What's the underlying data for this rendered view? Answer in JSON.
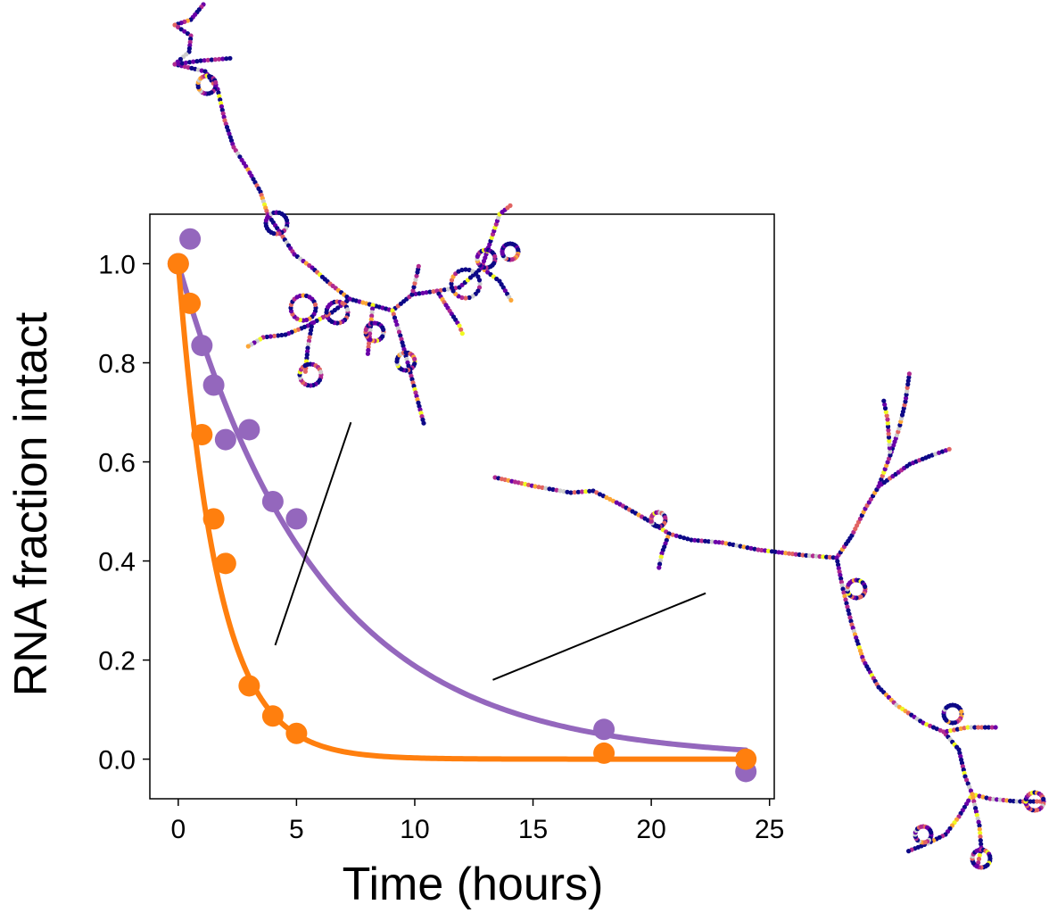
{
  "chart_data": {
    "type": "scatter",
    "xlabel": "Time (hours)",
    "ylabel": "RNA fraction intact",
    "xlim": [
      -1.2,
      25.2
    ],
    "ylim": [
      -0.08,
      1.1
    ],
    "xticks": [
      0,
      5,
      10,
      15,
      20,
      25
    ],
    "yticks": [
      0.0,
      0.2,
      0.4,
      0.6,
      0.8,
      1.0
    ],
    "xtick_labels": [
      "0",
      "5",
      "10",
      "15",
      "20",
      "25"
    ],
    "ytick_labels": [
      "0.0",
      "0.2",
      "0.4",
      "0.6",
      "0.8",
      "1.0"
    ],
    "grid": false,
    "legend": false,
    "series": [
      {
        "color": "#9467bd",
        "points": [
          {
            "x": 0,
            "y": 1.0
          },
          {
            "x": 0.5,
            "y": 1.05
          },
          {
            "x": 1,
            "y": 0.835
          },
          {
            "x": 1.5,
            "y": 0.755
          },
          {
            "x": 2,
            "y": 0.645
          },
          {
            "x": 3,
            "y": 0.665
          },
          {
            "x": 4,
            "y": 0.52
          },
          {
            "x": 5,
            "y": 0.485
          },
          {
            "x": 18,
            "y": 0.06
          },
          {
            "x": 24,
            "y": -0.025
          }
        ],
        "fit": {
          "model": "exponential_decay",
          "k": 0.167,
          "x_range": [
            0,
            24
          ]
        }
      },
      {
        "color": "#ff7f0e",
        "points": [
          {
            "x": 0,
            "y": 1.0
          },
          {
            "x": 0.5,
            "y": 0.92
          },
          {
            "x": 1,
            "y": 0.655
          },
          {
            "x": 1.5,
            "y": 0.485
          },
          {
            "x": 2,
            "y": 0.395
          },
          {
            "x": 3,
            "y": 0.148
          },
          {
            "x": 4,
            "y": 0.087
          },
          {
            "x": 5,
            "y": 0.052
          },
          {
            "x": 18,
            "y": 0.012
          },
          {
            "x": 24,
            "y": 0.0
          }
        ],
        "fit": {
          "model": "exponential_decay",
          "k": 0.6,
          "x_range": [
            0,
            24
          ]
        }
      }
    ]
  },
  "annotations": {
    "structures": [
      {
        "description": "rna-structure",
        "leader_from": {
          "x": 4.1,
          "y": 0.23
        },
        "leader_to": {
          "x": 7.3,
          "y": 0.68
        }
      },
      {
        "description": "rna-structure",
        "leader_from": {
          "x": 13.3,
          "y": 0.16
        },
        "leader_to": {
          "x": 22.3,
          "y": 0.335
        }
      }
    ],
    "structure_colors": [
      "#0d0887",
      "#6a00a8",
      "#b12a90",
      "#e16462",
      "#fca636",
      "#f0f921",
      "#cccccc"
    ]
  }
}
